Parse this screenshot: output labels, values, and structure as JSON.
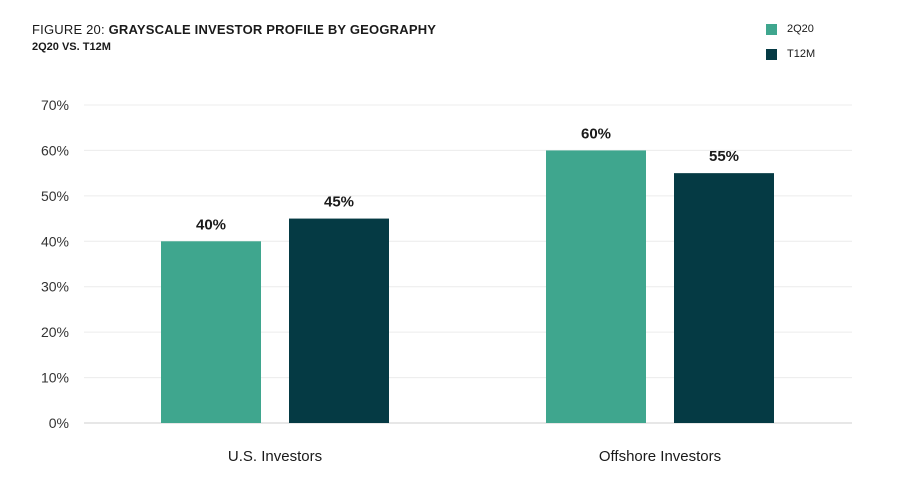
{
  "header": {
    "title_prefix": "FIGURE 20: ",
    "title_main": "GRAYSCALE INVESTOR PROFILE BY GEOGRAPHY",
    "subtitle": "2Q20 VS. T12M"
  },
  "legend": [
    {
      "label": "2Q20",
      "color": "#3fa68e"
    },
    {
      "label": "T12M",
      "color": "#053a44"
    }
  ],
  "chart_data": {
    "type": "bar",
    "title": "FIGURE 20: GRAYSCALE INVESTOR PROFILE BY GEOGRAPHY",
    "subtitle": "2Q20 VS. T12M",
    "categories": [
      "U.S. Investors",
      "Offshore Investors"
    ],
    "series": [
      {
        "name": "2Q20",
        "values": [
          40,
          60
        ],
        "labels": [
          "40%",
          "60%"
        ],
        "color": "#3fa68e"
      },
      {
        "name": "T12M",
        "values": [
          45,
          55
        ],
        "labels": [
          "45%",
          "55%"
        ],
        "color": "#053a44"
      }
    ],
    "yticks": [
      "0%",
      "10%",
      "20%",
      "30%",
      "40%",
      "50%",
      "60%",
      "70%"
    ],
    "ylim": [
      0,
      70
    ],
    "xlabel": "",
    "ylabel": "",
    "grid": true,
    "legend_position": "top-right"
  }
}
